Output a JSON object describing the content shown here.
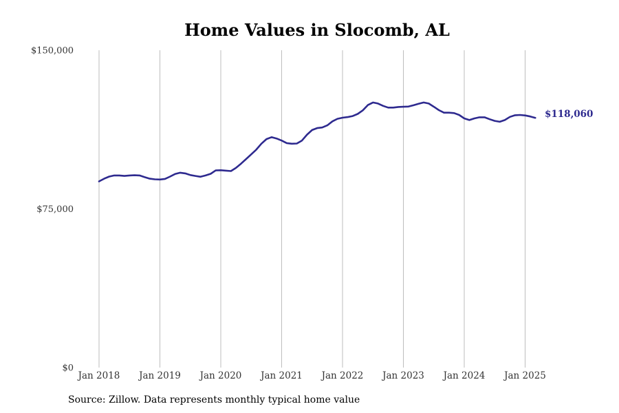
{
  "chart_data": {
    "type": "line",
    "title": "Home Values in Slocomb, AL",
    "xlabel": "",
    "ylabel": "",
    "ylim": [
      0,
      150000
    ],
    "yticks": [
      {
        "value": 0,
        "label": "$0"
      },
      {
        "value": 75000,
        "label": "$75,000"
      },
      {
        "value": 150000,
        "label": "$150,000"
      }
    ],
    "xticks": [
      {
        "value": "2018-01",
        "label": "Jan 2018"
      },
      {
        "value": "2019-01",
        "label": "Jan 2019"
      },
      {
        "value": "2020-01",
        "label": "Jan 2020"
      },
      {
        "value": "2021-01",
        "label": "Jan 2021"
      },
      {
        "value": "2022-01",
        "label": "Jan 2022"
      },
      {
        "value": "2023-01",
        "label": "Jan 2023"
      },
      {
        "value": "2024-01",
        "label": "Jan 2024"
      },
      {
        "value": "2025-01",
        "label": "Jan 2025"
      }
    ],
    "grid": "vertical",
    "line_color": "#2e2a8f",
    "end_label": "$118,060",
    "series": [
      {
        "x": [
          "2018-01",
          "2018-02",
          "2018-03",
          "2018-04",
          "2018-05",
          "2018-06",
          "2018-07",
          "2018-08",
          "2018-09",
          "2018-10",
          "2018-11",
          "2018-12",
          "2019-01",
          "2019-02",
          "2019-03",
          "2019-04",
          "2019-05",
          "2019-06",
          "2019-07",
          "2019-08",
          "2019-09",
          "2019-10",
          "2019-11",
          "2019-12",
          "2020-01",
          "2020-02",
          "2020-03",
          "2020-04",
          "2020-05",
          "2020-06",
          "2020-07",
          "2020-08",
          "2020-09",
          "2020-10",
          "2020-11",
          "2020-12",
          "2021-01",
          "2021-02",
          "2021-03",
          "2021-04",
          "2021-05",
          "2021-06",
          "2021-07",
          "2021-08",
          "2021-09",
          "2021-10",
          "2021-11",
          "2021-12",
          "2022-01",
          "2022-02",
          "2022-03",
          "2022-04",
          "2022-05",
          "2022-06",
          "2022-07",
          "2022-08",
          "2022-09",
          "2022-10",
          "2022-11",
          "2022-12",
          "2023-01",
          "2023-02",
          "2023-03",
          "2023-04",
          "2023-05",
          "2023-06",
          "2023-07",
          "2023-08",
          "2023-09",
          "2023-10",
          "2023-11",
          "2023-12",
          "2024-01",
          "2024-02",
          "2024-03",
          "2024-04",
          "2024-05",
          "2024-06",
          "2024-07",
          "2024-08",
          "2024-09",
          "2024-10",
          "2024-11",
          "2024-12",
          "2025-01",
          "2025-02",
          "2025-03"
        ],
        "values": [
          88000,
          89300,
          90300,
          90800,
          90800,
          90600,
          90800,
          90900,
          90800,
          90000,
          89300,
          89000,
          88900,
          89200,
          90300,
          91500,
          92100,
          91800,
          91000,
          90600,
          90200,
          90800,
          91600,
          93200,
          93300,
          93100,
          92900,
          94400,
          96400,
          98600,
          100800,
          103000,
          105800,
          108000,
          108900,
          108300,
          107300,
          106100,
          105800,
          105900,
          107300,
          110100,
          112300,
          113200,
          113500,
          114500,
          116400,
          117600,
          118100,
          118400,
          118900,
          119900,
          121600,
          124100,
          125300,
          124800,
          123700,
          122900,
          122900,
          123200,
          123300,
          123400,
          124000,
          124700,
          125300,
          124800,
          123300,
          121700,
          120500,
          120500,
          120300,
          119400,
          117800,
          117000,
          117800,
          118300,
          118300,
          117400,
          116600,
          116200,
          117000,
          118500,
          119300,
          119400,
          119200,
          118700,
          118060
        ]
      }
    ]
  },
  "source": "Source: Zillow. Data represents monthly typical home value"
}
